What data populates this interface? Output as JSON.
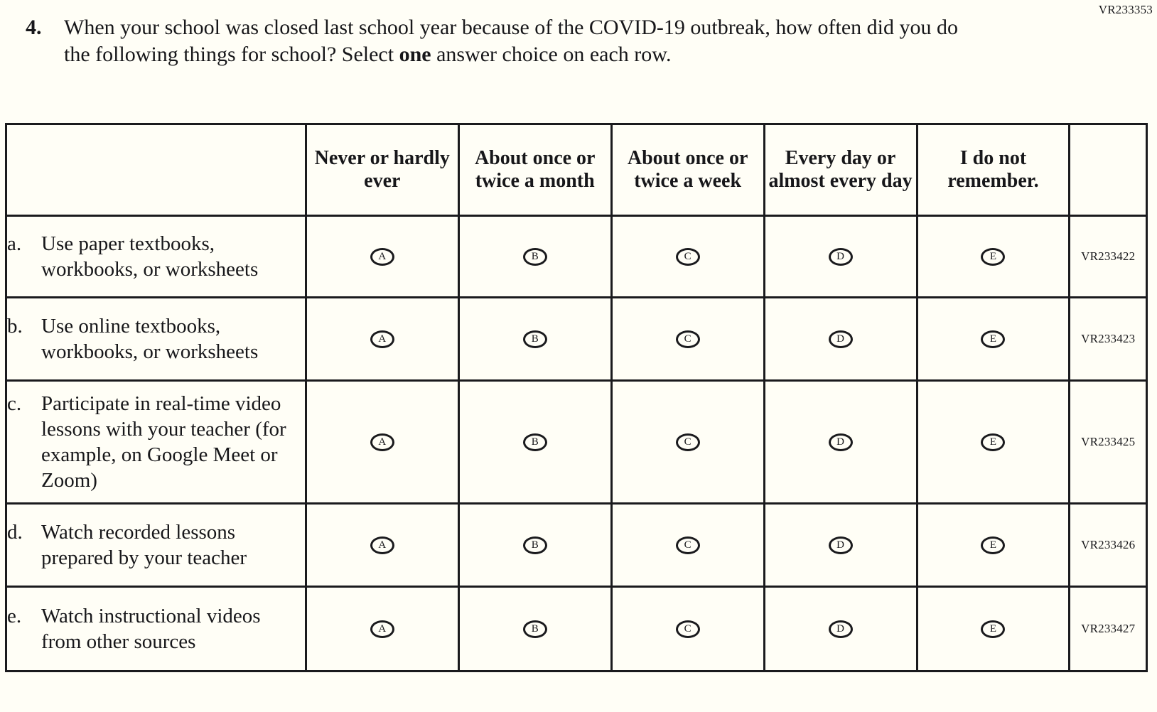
{
  "page": {
    "form_code": "VR233353"
  },
  "question": {
    "number": "4.",
    "text_before_bold": "When your school was closed last school year because of the COVID-19 outbreak, how often did you do the following things for school?  Select ",
    "bold_word": "one",
    "text_after_bold": " answer choice on each row.",
    "row_word": ""
  },
  "table": {
    "columns": [
      "Never or hardly ever",
      "About once or twice a month",
      "About once or twice a week",
      "Every day or almost every day",
      "I do not remember."
    ],
    "options": [
      "A",
      "B",
      "C",
      "D",
      "E"
    ],
    "rows": [
      {
        "letter": "a.",
        "label": "Use paper textbooks, workbooks, or worksheets",
        "code": "VR233422"
      },
      {
        "letter": "b.",
        "label": "Use online textbooks, workbooks, or worksheets",
        "code": "VR233423"
      },
      {
        "letter": "c.",
        "label": "Participate in real-time video lessons with your teacher (for example, on Google Meet or Zoom)",
        "code": "VR233425"
      },
      {
        "letter": "d.",
        "label": "Watch recorded lessons prepared by your teacher",
        "code": "VR233426"
      },
      {
        "letter": "e.",
        "label": "Watch instructional videos from other sources",
        "code": "VR233427"
      }
    ]
  },
  "colors": {
    "ink": "#1a1a1d",
    "paper": "#fffef6"
  }
}
